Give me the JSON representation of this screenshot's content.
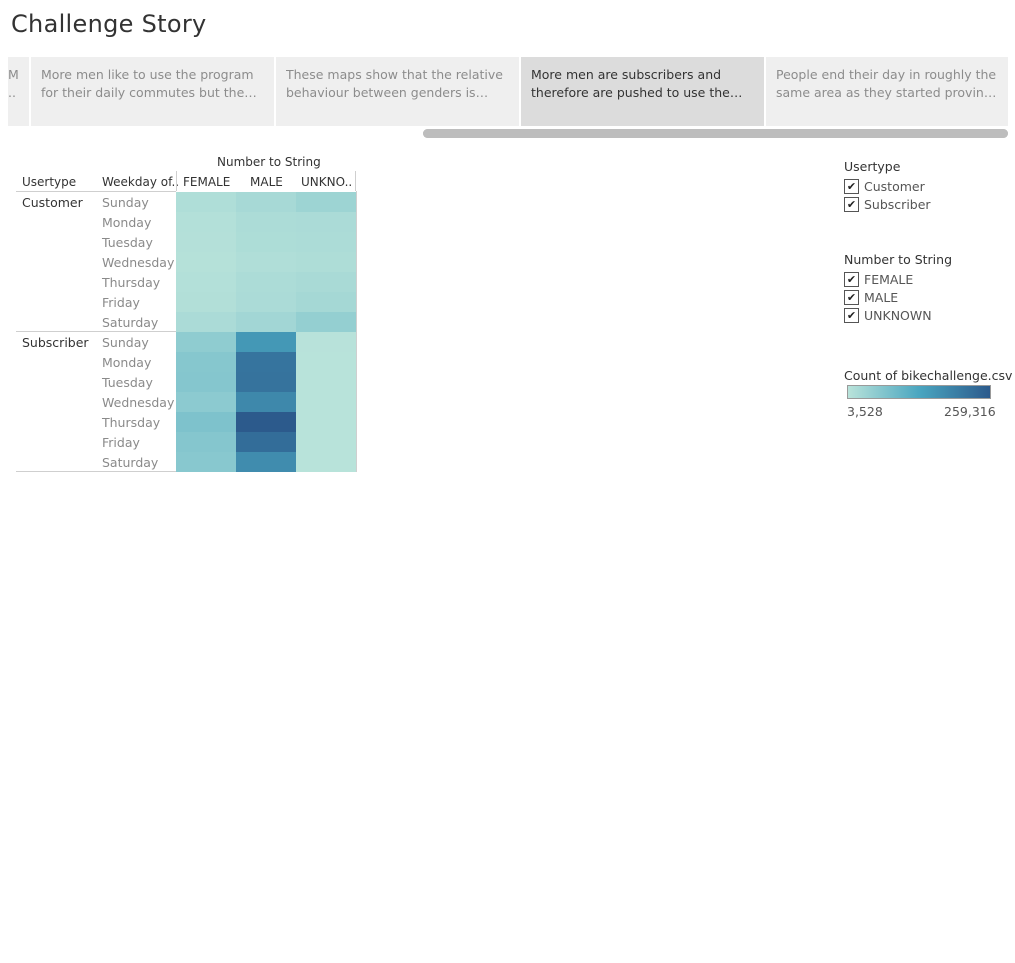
{
  "title": "Challenge Story",
  "story_points": [
    {
      "text": "M ..",
      "active": false
    },
    {
      "text": "More men like to use the program for their daily commutes but the behavio..",
      "active": false
    },
    {
      "text": "These maps show that the relative behaviour between genders is similar,..",
      "active": false
    },
    {
      "text": "More men are subscribers and therefore are pushed to use the progr..",
      "active": true
    },
    {
      "text": "People end their day in roughly the same area as they started proving thi..",
      "active": false
    }
  ],
  "chart_data": {
    "type": "heatmap",
    "column_group_label": "Number to String",
    "row_headers": [
      "Usertype",
      "Weekday of.."
    ],
    "columns": [
      "FEMALE",
      "MALE",
      "UNKNO.."
    ],
    "groups": [
      {
        "name": "Customer",
        "rows": [
          "Sunday",
          "Monday",
          "Tuesday",
          "Wednesday",
          "Thursday",
          "Friday",
          "Saturday"
        ],
        "values": [
          [
            15000,
            24000,
            36000
          ],
          [
            10000,
            18000,
            20000
          ],
          [
            9000,
            17000,
            19000
          ],
          [
            8000,
            14000,
            16000
          ],
          [
            10000,
            18000,
            22000
          ],
          [
            12000,
            20000,
            26000
          ],
          [
            20000,
            30000,
            46000
          ]
        ]
      },
      {
        "name": "Subscriber",
        "rows": [
          "Sunday",
          "Monday",
          "Tuesday",
          "Wednesday",
          "Thursday",
          "Friday",
          "Saturday"
        ],
        "values": [
          [
            52000,
            155000,
            5000
          ],
          [
            62000,
            215000,
            4500
          ],
          [
            64000,
            218000,
            4500
          ],
          [
            55000,
            182000,
            4500
          ],
          [
            72000,
            259316,
            4500
          ],
          [
            64000,
            228000,
            4500
          ],
          [
            60000,
            175000,
            4500
          ]
        ]
      }
    ],
    "color_legend": {
      "title": "Count of bikechallenge.csv",
      "min": 3528,
      "max": 259316,
      "min_label": "3,528",
      "max_label": "259,316",
      "colors": [
        "#b9e3da",
        "#4aa6c0",
        "#2c5a8c"
      ]
    }
  },
  "filters": [
    {
      "title": "Usertype",
      "items": [
        {
          "label": "Customer",
          "checked": true
        },
        {
          "label": "Subscriber",
          "checked": true
        }
      ]
    },
    {
      "title": "Number to String",
      "items": [
        {
          "label": "FEMALE",
          "checked": true
        },
        {
          "label": "MALE",
          "checked": true
        },
        {
          "label": "UNKNOWN",
          "checked": true
        }
      ]
    }
  ]
}
